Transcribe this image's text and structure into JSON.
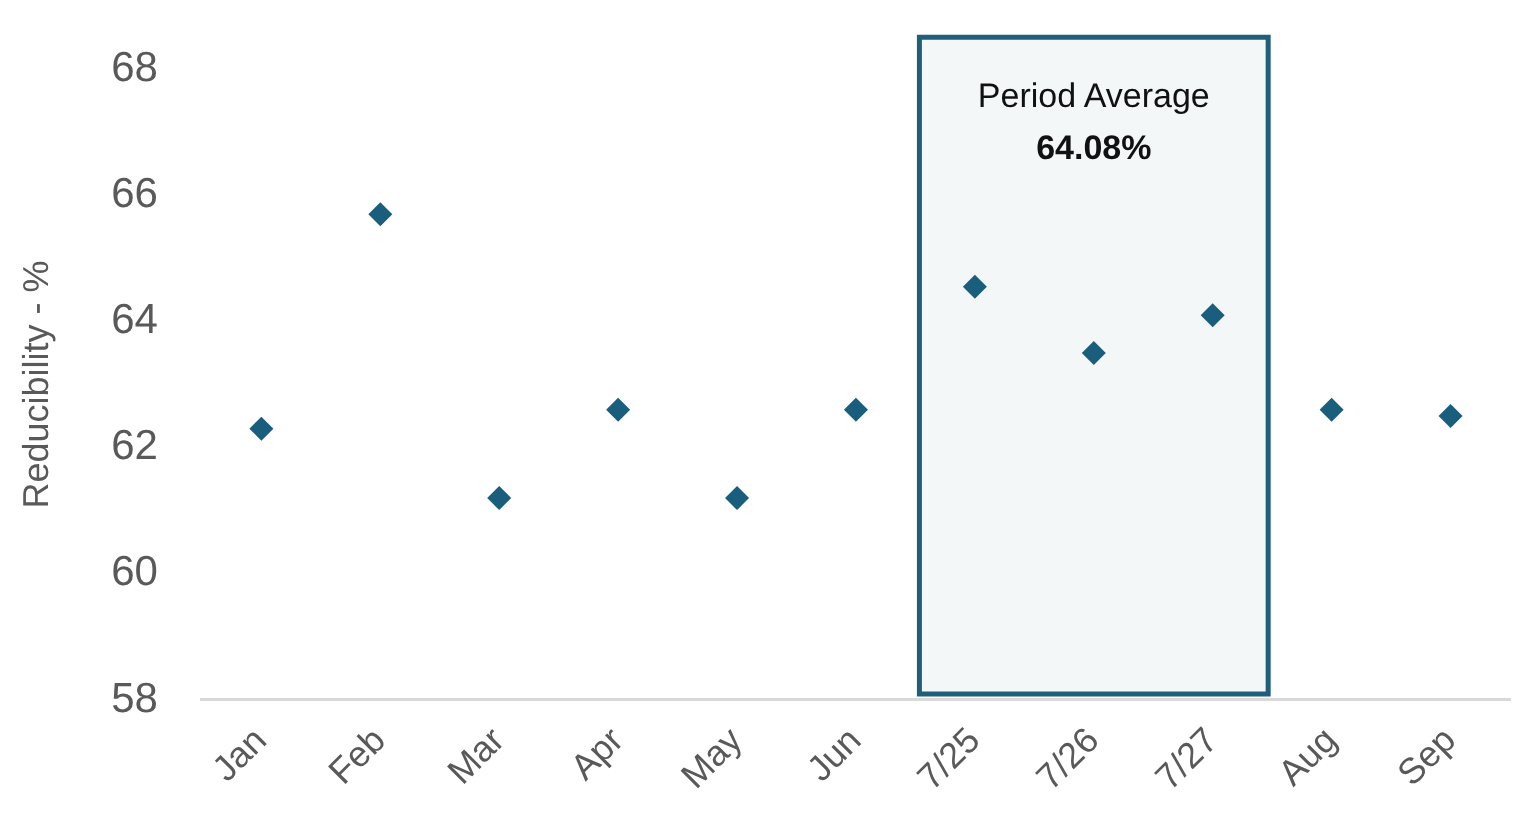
{
  "chart_data": {
    "type": "scatter",
    "ylabel": "Reducibility - %",
    "categories": [
      "Jan",
      "Feb",
      "Mar",
      "Apr",
      "May",
      "Jun",
      "7/25",
      "7/26",
      "7/27",
      "Aug",
      "Sep"
    ],
    "values": [
      62.3,
      65.7,
      61.2,
      62.6,
      61.2,
      62.6,
      64.55,
      63.5,
      64.1,
      62.6,
      62.5
    ],
    "color": "#1a5e7e",
    "marker": "diamond",
    "ylim": [
      58,
      68
    ],
    "yticks": [
      58,
      60,
      62,
      64,
      66,
      68
    ],
    "grid": false,
    "legend": false,
    "bands": [
      {
        "axis": "x",
        "from": "7/25",
        "to": "7/27",
        "label": "Period Average\n64.08%",
        "color": "#1f5f7a"
      }
    ]
  }
}
